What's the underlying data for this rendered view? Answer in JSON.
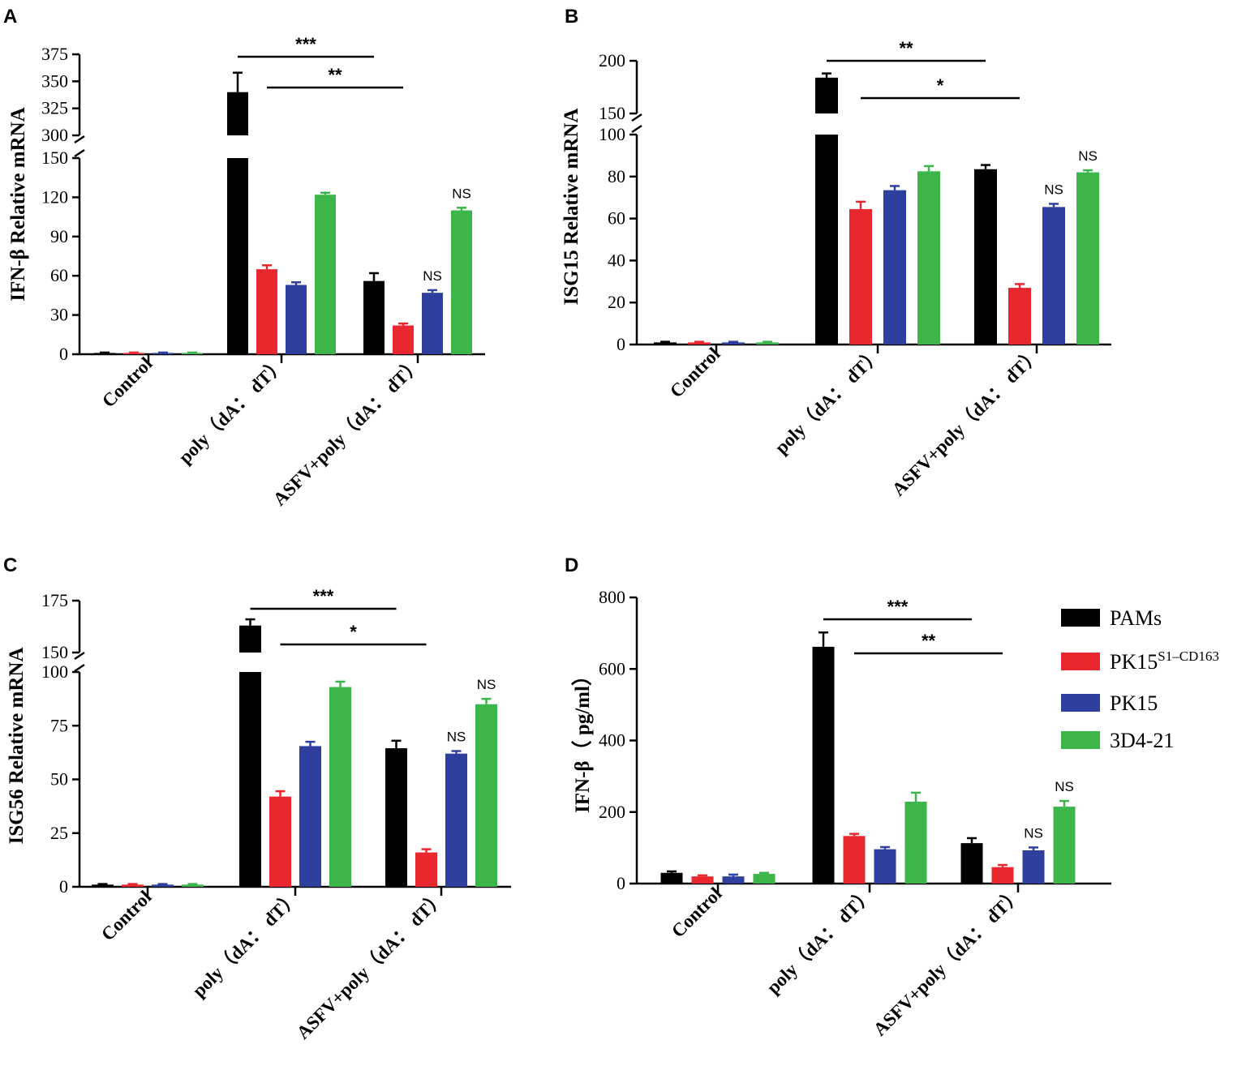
{
  "legend": {
    "items": [
      {
        "label": "PAMs",
        "color": "#000000"
      },
      {
        "label": "PK15",
        "sup": "S1–CD163",
        "color": "#e8272e"
      },
      {
        "label": "PK15",
        "color": "#2e3f9e"
      },
      {
        "label": "3D4-21",
        "color": "#3cb54a"
      }
    ]
  },
  "series_colors": [
    "#000000",
    "#e8272e",
    "#2e3f9e",
    "#3cb54a"
  ],
  "chart_data": [
    {
      "panel": "A",
      "type": "bar",
      "ylabel": "IFN-β Relative mRNA",
      "categories": [
        "Control",
        "poly（dA： dT）",
        "ASFV+poly（dA： dT）"
      ],
      "series": [
        {
          "name": "PAMs",
          "values": [
            1,
            340,
            56
          ],
          "errors": [
            0.3,
            18,
            6
          ]
        },
        {
          "name": "PK15S1–CD163",
          "values": [
            1,
            65,
            22
          ],
          "errors": [
            0.3,
            3,
            1.5
          ]
        },
        {
          "name": "PK15",
          "values": [
            1,
            53,
            47
          ],
          "errors": [
            0.3,
            2,
            2
          ]
        },
        {
          "name": "3D4-21",
          "values": [
            1,
            122,
            110
          ],
          "errors": [
            0.3,
            1.5,
            2
          ]
        }
      ],
      "axis_break": {
        "lower": [
          0,
          150
        ],
        "upper": [
          300,
          375
        ]
      },
      "yticks_lower": [
        "0",
        "30",
        "60",
        "90",
        "120",
        "150"
      ],
      "yticks_upper": [
        "300",
        "325",
        "350",
        "375"
      ],
      "significance": [
        {
          "label": "***",
          "from": [
            1,
            0
          ],
          "to": [
            2,
            0
          ]
        },
        {
          "label": "**",
          "from": [
            1,
            1
          ],
          "to": [
            2,
            1
          ]
        }
      ],
      "annotations": [
        {
          "label": "NS",
          "category": 2,
          "series": 2
        },
        {
          "label": "NS",
          "category": 2,
          "series": 3
        }
      ]
    },
    {
      "panel": "B",
      "type": "bar",
      "ylabel": "ISG15 Relative mRNA",
      "categories": [
        "Control",
        "poly（dA： dT）",
        "ASFV+poly（dA： dT）"
      ],
      "series": [
        {
          "name": "PAMs",
          "values": [
            1,
            184,
            83.5
          ],
          "errors": [
            0.3,
            4,
            2
          ]
        },
        {
          "name": "PK15S1–CD163",
          "values": [
            1,
            64.5,
            27
          ],
          "errors": [
            0.3,
            3.5,
            1.8
          ]
        },
        {
          "name": "PK15",
          "values": [
            1,
            73.5,
            65.5
          ],
          "errors": [
            0.3,
            2,
            1.5
          ]
        },
        {
          "name": "3D4-21",
          "values": [
            1,
            82.5,
            82
          ],
          "errors": [
            0.3,
            2.5,
            1
          ]
        }
      ],
      "axis_break": {
        "lower": [
          0,
          100
        ],
        "upper": [
          150,
          200
        ]
      },
      "yticks_lower": [
        "0",
        "20",
        "40",
        "60",
        "80",
        "100"
      ],
      "yticks_upper": [
        "150",
        "200"
      ],
      "significance": [
        {
          "label": "**",
          "from": [
            1,
            0
          ],
          "to": [
            2,
            0
          ]
        },
        {
          "label": "*",
          "from": [
            1,
            1
          ],
          "to": [
            2,
            1
          ]
        }
      ],
      "annotations": [
        {
          "label": "NS",
          "category": 2,
          "series": 2
        },
        {
          "label": "NS",
          "category": 2,
          "series": 3
        }
      ]
    },
    {
      "panel": "C",
      "type": "bar",
      "ylabel": "ISG56 Relative mRNA",
      "categories": [
        "Control",
        "poly（dA： dT）",
        "ASFV+poly（dA： dT）"
      ],
      "series": [
        {
          "name": "PAMs",
          "values": [
            1,
            163,
            64.5
          ],
          "errors": [
            0.3,
            3,
            3.5
          ]
        },
        {
          "name": "PK15S1–CD163",
          "values": [
            1,
            42,
            16
          ],
          "errors": [
            0.3,
            2.5,
            1.5
          ]
        },
        {
          "name": "PK15",
          "values": [
            1,
            65.5,
            62
          ],
          "errors": [
            0.3,
            2,
            1.2
          ]
        },
        {
          "name": "3D4-21",
          "values": [
            1,
            93,
            85
          ],
          "errors": [
            0.3,
            2.5,
            2.5
          ]
        }
      ],
      "axis_break": {
        "lower": [
          0,
          100
        ],
        "upper": [
          150,
          175
        ]
      },
      "yticks_lower": [
        "0",
        "25",
        "50",
        "75",
        "100"
      ],
      "yticks_upper": [
        "150",
        "175"
      ],
      "significance": [
        {
          "label": "***",
          "from": [
            1,
            0
          ],
          "to": [
            2,
            0
          ]
        },
        {
          "label": "*",
          "from": [
            1,
            1
          ],
          "to": [
            2,
            1
          ]
        }
      ],
      "annotations": [
        {
          "label": "NS",
          "category": 2,
          "series": 2
        },
        {
          "label": "NS",
          "category": 2,
          "series": 3
        }
      ]
    },
    {
      "panel": "D",
      "type": "bar",
      "ylabel": "IFN-β（ pg/ml）",
      "categories": [
        "Control",
        "poly（dA： dT）",
        "ASFV+poly（dA： dT）"
      ],
      "series": [
        {
          "name": "PAMs",
          "values": [
            30,
            662,
            113
          ],
          "errors": [
            4,
            40,
            14
          ]
        },
        {
          "name": "PK15S1–CD163",
          "values": [
            20,
            133,
            46
          ],
          "errors": [
            3,
            6,
            6
          ]
        },
        {
          "name": "PK15",
          "values": [
            20,
            96,
            93
          ],
          "errors": [
            5,
            6,
            8
          ]
        },
        {
          "name": "3D4-21",
          "values": [
            27,
            229,
            215
          ],
          "errors": [
            3,
            25,
            16
          ]
        }
      ],
      "ylim": [
        0,
        800
      ],
      "yticks": [
        "0",
        "200",
        "400",
        "600",
        "800"
      ],
      "significance": [
        {
          "label": "***",
          "from": [
            1,
            0
          ],
          "to": [
            2,
            0
          ]
        },
        {
          "label": "**",
          "from": [
            1,
            1
          ],
          "to": [
            2,
            1
          ]
        }
      ],
      "annotations": [
        {
          "label": "NS",
          "category": 2,
          "series": 2
        },
        {
          "label": "NS",
          "category": 2,
          "series": 3
        }
      ]
    }
  ]
}
